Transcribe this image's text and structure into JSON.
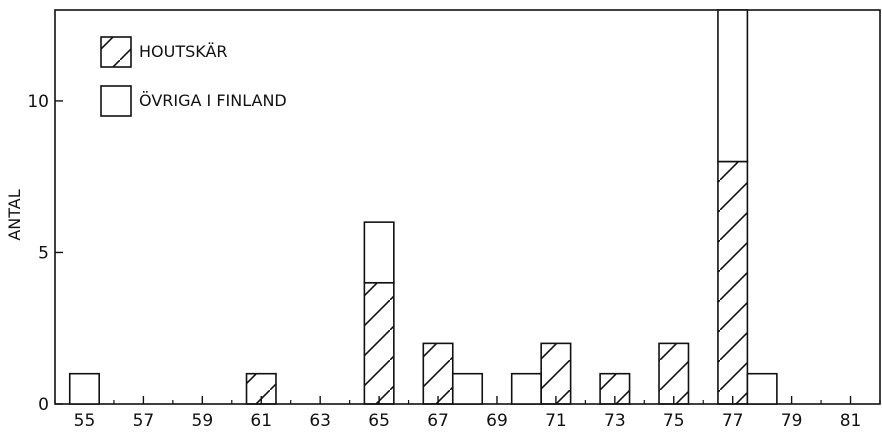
{
  "chart_data": {
    "type": "bar",
    "stacked": true,
    "ylabel": "ANTAL",
    "xlabel": "",
    "title": "",
    "xlim": [
      54,
      82
    ],
    "ylim": [
      0,
      13
    ],
    "x_ticks": [
      55,
      57,
      59,
      61,
      63,
      65,
      67,
      69,
      71,
      73,
      75,
      77,
      79,
      81
    ],
    "y_ticks": [
      0,
      5,
      10
    ],
    "grid": false,
    "legend_position": "top-left",
    "x": [
      55,
      61,
      65,
      67,
      68,
      70,
      71,
      73,
      75,
      77,
      78
    ],
    "series": [
      {
        "name": "HOUTSKÄR",
        "pattern": "hatch",
        "values": [
          0,
          1,
          4,
          2,
          0,
          0,
          2,
          1,
          2,
          8,
          0
        ]
      },
      {
        "name": "ÖVRIGA I FINLAND",
        "pattern": "empty",
        "values": [
          1,
          0,
          2,
          0,
          1,
          1,
          0,
          0,
          0,
          5,
          1
        ]
      }
    ]
  }
}
